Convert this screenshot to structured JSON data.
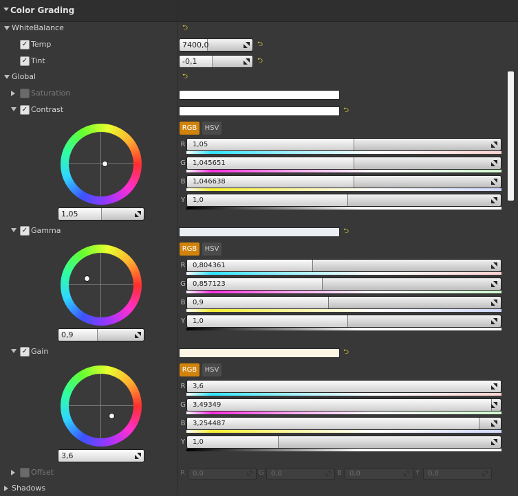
{
  "header": {
    "title": "Color Grading"
  },
  "white_balance": {
    "label": "WhiteBalance",
    "temp": {
      "label": "Temp",
      "value": "7400,0",
      "fill": 0.38
    },
    "tint": {
      "label": "Tint",
      "value": "-0,1",
      "fill": 0.44
    }
  },
  "global": {
    "label": "Global"
  },
  "saturation": {
    "label": "Saturation"
  },
  "tabs": {
    "rgb": "RGB",
    "hsv": "HSV"
  },
  "contrast": {
    "label": "Contrast",
    "wheel_value": "1,05",
    "wheel_fill": 0.5,
    "swatch_color": "#ffffff",
    "channels": [
      {
        "label": "R",
        "value": "1,05",
        "fill": 0.53
      },
      {
        "label": "G",
        "value": "1,045651",
        "fill": 0.53
      },
      {
        "label": "B",
        "value": "1,046638",
        "fill": 0.53
      },
      {
        "label": "Y",
        "value": "1,0",
        "fill": 0.51
      }
    ]
  },
  "gamma": {
    "label": "Gamma",
    "wheel_value": "0,9",
    "wheel_fill": 0.45,
    "swatch_color": "#ebeff4",
    "channels": [
      {
        "label": "R",
        "value": "0,804361",
        "fill": 0.4
      },
      {
        "label": "G",
        "value": "0,857123",
        "fill": 0.43
      },
      {
        "label": "B",
        "value": "0,9",
        "fill": 0.45
      },
      {
        "label": "Y",
        "value": "1,0",
        "fill": 0.51
      }
    ]
  },
  "gain": {
    "label": "Gain",
    "wheel_value": "3,6",
    "wheel_fill": 1.0,
    "swatch_color": "#fff7e6",
    "channels": [
      {
        "label": "R",
        "value": "3,6",
        "fill": 1.0
      },
      {
        "label": "G",
        "value": "3,49349",
        "fill": 0.97
      },
      {
        "label": "B",
        "value": "3,254487",
        "fill": 0.93
      },
      {
        "label": "Y",
        "value": "1,0",
        "fill": 0.29
      }
    ]
  },
  "offset": {
    "label": "Offset",
    "channels": [
      {
        "label": "R",
        "value": "0,0"
      },
      {
        "label": "G",
        "value": "0,0"
      },
      {
        "label": "B",
        "value": "0,0"
      },
      {
        "label": "Y",
        "value": "0,0"
      }
    ]
  },
  "shadows": {
    "label": "Shadows"
  },
  "colors": {
    "accent": "#d1830c",
    "reset": "#e8d53a"
  }
}
